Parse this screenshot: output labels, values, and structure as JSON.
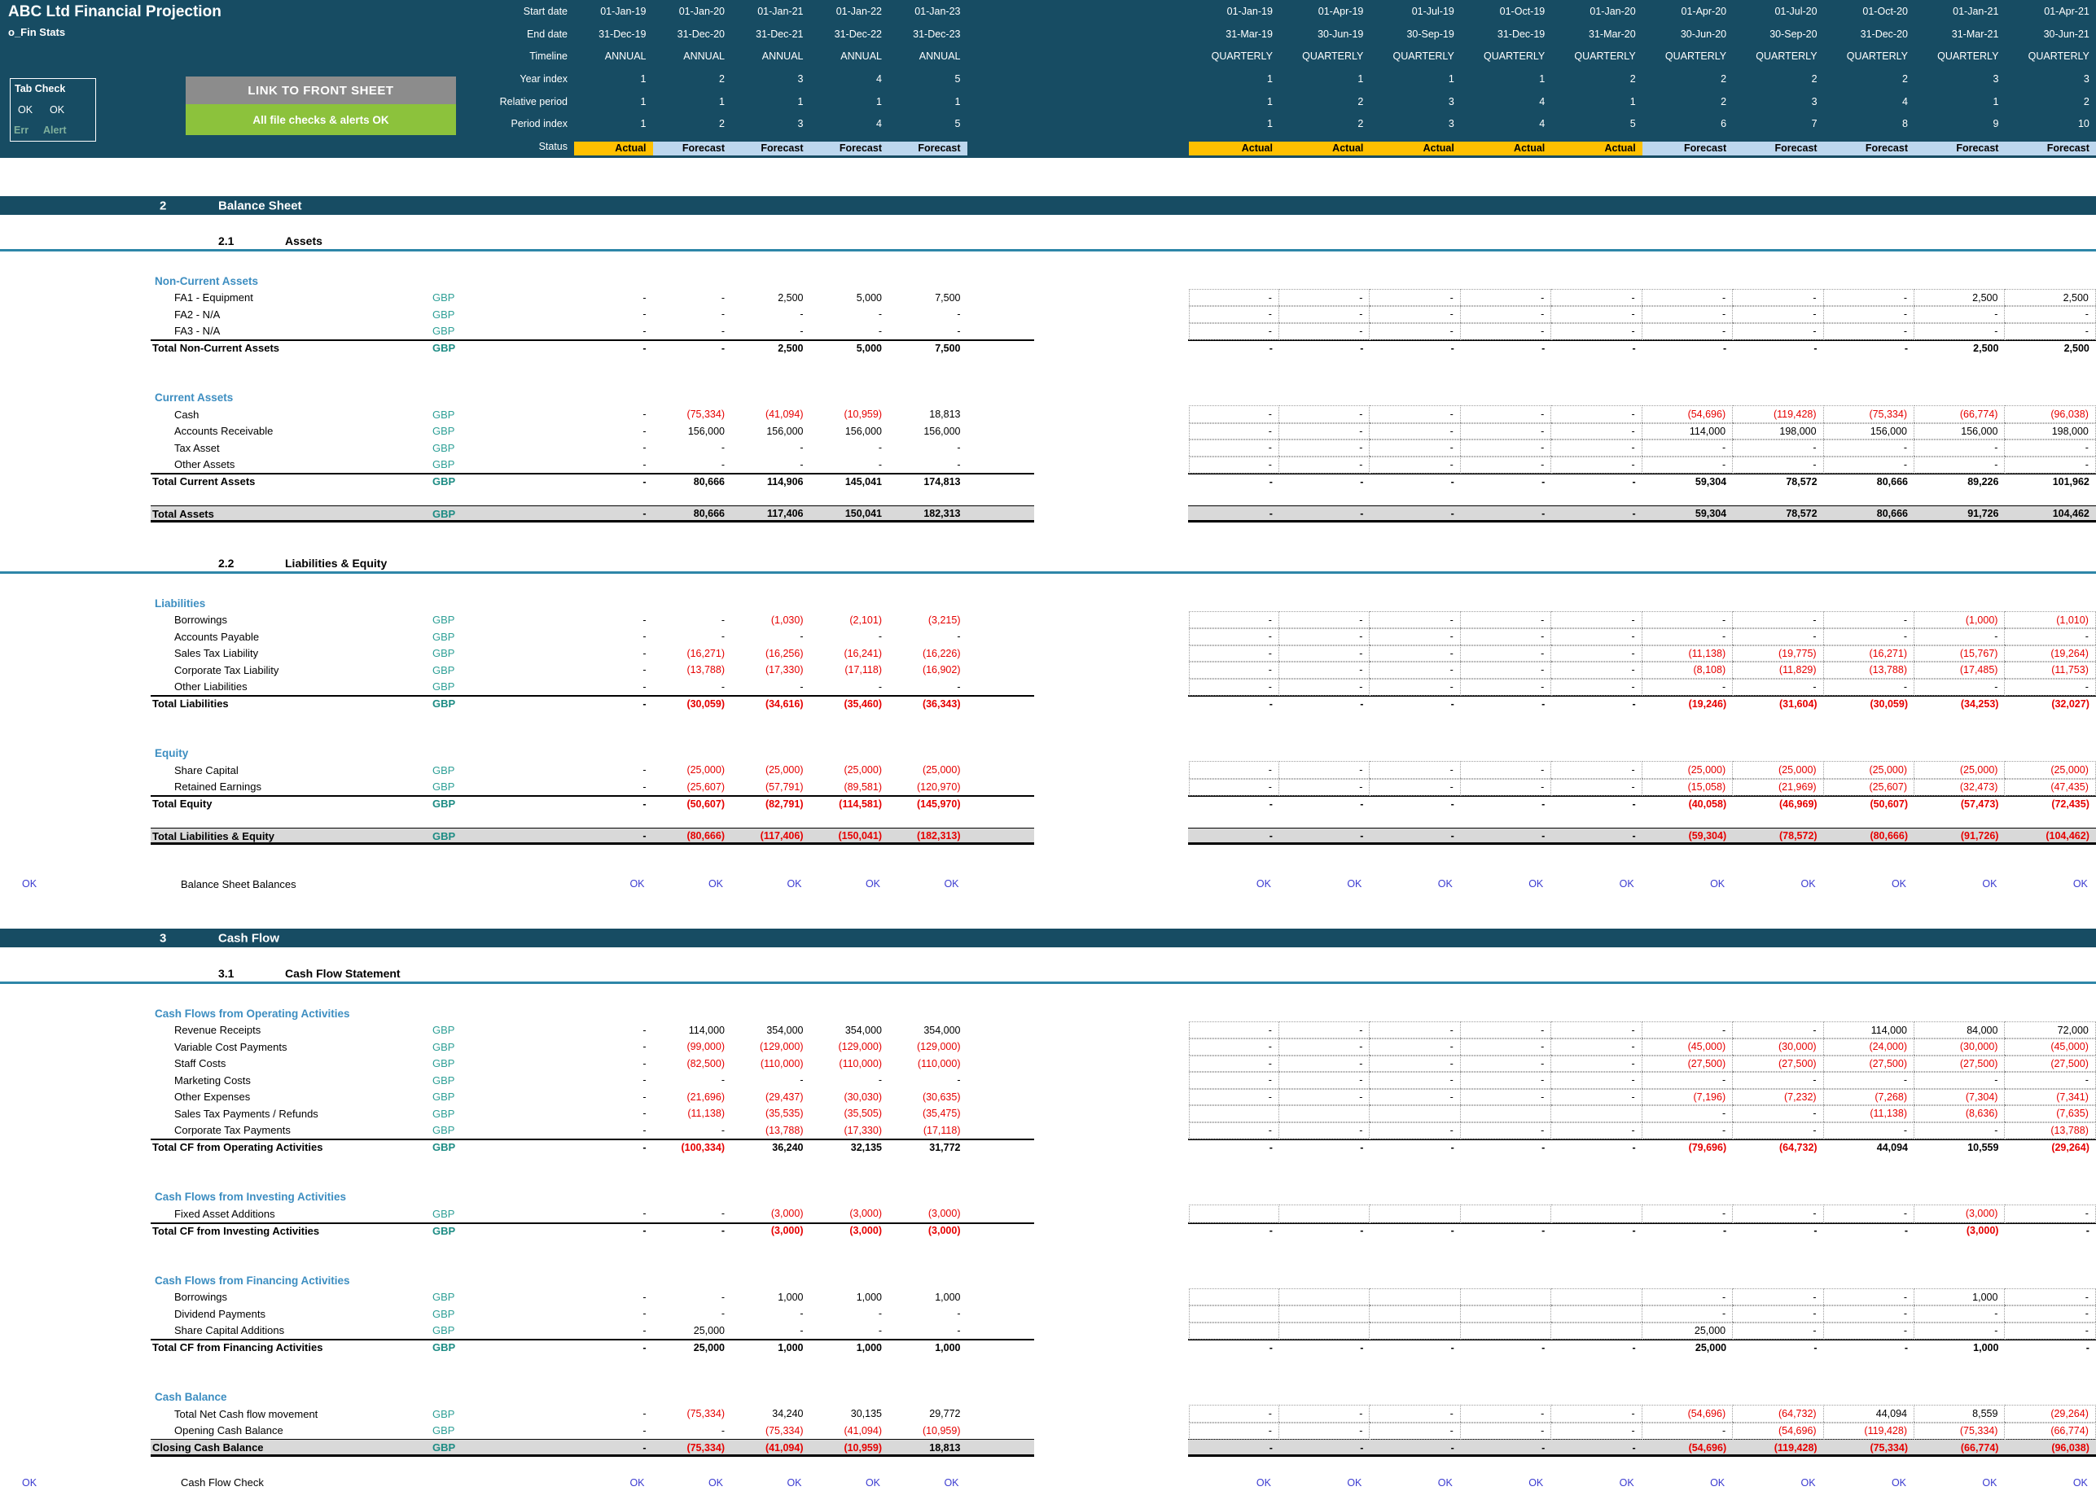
{
  "header": {
    "title": "ABC Ltd Financial Projection",
    "subtitle": "o_Fin Stats",
    "tab_check": {
      "title": "Tab Check",
      "ok_left": "OK",
      "ok_right": "OK",
      "err": "Err",
      "alert": "Alert"
    },
    "link_button": "LINK TO FRONT SHEET",
    "alert_banner": "All file checks & alerts OK",
    "meta_labels": [
      "Start date",
      "End date",
      "Timeline",
      "Year index",
      "Relative period",
      "Period index",
      "Status"
    ]
  },
  "colors": {
    "topbar": "#174C63",
    "actual": "#FFC000",
    "forecast": "#BDD7EE",
    "negative": "#E60000",
    "check_ok": "#3A3AD0",
    "group_heading": "#3D8EC1",
    "gbp": "#2FA097",
    "total_band": "#D9D9D9",
    "link_button": "#8C8C8C",
    "alert_banner": "#8CC23C",
    "err_alert": "#7FAF9C",
    "sub_underline": "#2E86A8"
  },
  "columns": {
    "annual": [
      {
        "start": "01-Jan-19",
        "end": "31-Dec-19",
        "timeline": "ANNUAL",
        "year": "1",
        "rel": "1",
        "period": "1",
        "status": "Actual"
      },
      {
        "start": "01-Jan-20",
        "end": "31-Dec-20",
        "timeline": "ANNUAL",
        "year": "2",
        "rel": "1",
        "period": "2",
        "status": "Forecast"
      },
      {
        "start": "01-Jan-21",
        "end": "31-Dec-21",
        "timeline": "ANNUAL",
        "year": "3",
        "rel": "1",
        "period": "3",
        "status": "Forecast"
      },
      {
        "start": "01-Jan-22",
        "end": "31-Dec-22",
        "timeline": "ANNUAL",
        "year": "4",
        "rel": "1",
        "period": "4",
        "status": "Forecast"
      },
      {
        "start": "01-Jan-23",
        "end": "31-Dec-23",
        "timeline": "ANNUAL",
        "year": "5",
        "rel": "1",
        "period": "5",
        "status": "Forecast"
      }
    ],
    "quarterly": [
      {
        "start": "01-Jan-19",
        "end": "31-Mar-19",
        "timeline": "QUARTERLY",
        "year": "1",
        "rel": "1",
        "period": "1",
        "status": "Actual"
      },
      {
        "start": "01-Apr-19",
        "end": "30-Jun-19",
        "timeline": "QUARTERLY",
        "year": "1",
        "rel": "2",
        "period": "2",
        "status": "Actual"
      },
      {
        "start": "01-Jul-19",
        "end": "30-Sep-19",
        "timeline": "QUARTERLY",
        "year": "1",
        "rel": "3",
        "period": "3",
        "status": "Actual"
      },
      {
        "start": "01-Oct-19",
        "end": "31-Dec-19",
        "timeline": "QUARTERLY",
        "year": "1",
        "rel": "4",
        "period": "4",
        "status": "Actual"
      },
      {
        "start": "01-Jan-20",
        "end": "31-Mar-20",
        "timeline": "QUARTERLY",
        "year": "2",
        "rel": "1",
        "period": "5",
        "status": "Actual"
      },
      {
        "start": "01-Apr-20",
        "end": "30-Jun-20",
        "timeline": "QUARTERLY",
        "year": "2",
        "rel": "2",
        "period": "6",
        "status": "Forecast"
      },
      {
        "start": "01-Jul-20",
        "end": "30-Sep-20",
        "timeline": "QUARTERLY",
        "year": "2",
        "rel": "3",
        "period": "7",
        "status": "Forecast"
      },
      {
        "start": "01-Oct-20",
        "end": "31-Dec-20",
        "timeline": "QUARTERLY",
        "year": "2",
        "rel": "4",
        "period": "8",
        "status": "Forecast"
      },
      {
        "start": "01-Jan-21",
        "end": "31-Mar-21",
        "timeline": "QUARTERLY",
        "year": "3",
        "rel": "1",
        "period": "9",
        "status": "Forecast"
      },
      {
        "start": "01-Apr-21",
        "end": "30-Jun-21",
        "timeline": "QUARTERLY",
        "year": "3",
        "rel": "2",
        "period": "10",
        "status": "Forecast"
      }
    ]
  },
  "rows": [
    {
      "t": "sp",
      "h": 47
    },
    {
      "t": "sec",
      "num": "2",
      "title": "Balance Sheet"
    },
    {
      "t": "sp",
      "h": 24
    },
    {
      "t": "sub",
      "num": "2.1",
      "title": "Assets"
    },
    {
      "t": "sp",
      "h": 26
    },
    {
      "t": "grp",
      "title": "Non-Current Assets"
    },
    {
      "t": "row",
      "label": "FA1 - Equipment",
      "gbp": "GBP",
      "a": [
        "-",
        "-",
        "2,500",
        "5,000",
        "7,500"
      ],
      "q": [
        "-",
        "-",
        "-",
        "-",
        "-",
        "-",
        "-",
        "-",
        "2,500",
        "2,500"
      ]
    },
    {
      "t": "row",
      "label": "FA2 - N/A",
      "gbp": "GBP",
      "a": [
        "-",
        "-",
        "-",
        "-",
        "-"
      ],
      "q": [
        "-",
        "-",
        "-",
        "-",
        "-",
        "-",
        "-",
        "-",
        "-",
        "-"
      ]
    },
    {
      "t": "row",
      "label": "FA3 - N/A",
      "gbp": "GBP",
      "a": [
        "-",
        "-",
        "-",
        "-",
        "-"
      ],
      "q": [
        "-",
        "-",
        "-",
        "-",
        "-",
        "-",
        "-",
        "-",
        "-",
        "-"
      ]
    },
    {
      "t": "tot",
      "label": "Total Non-Current Assets",
      "gbp": "GBP",
      "a": [
        "-",
        "-",
        "2,500",
        "5,000",
        "7,500"
      ],
      "q": [
        "-",
        "-",
        "-",
        "-",
        "-",
        "-",
        "-",
        "-",
        "2,500",
        "2,500"
      ]
    },
    {
      "t": "sp",
      "h": 40
    },
    {
      "t": "grp",
      "title": "Current Assets"
    },
    {
      "t": "row",
      "label": "Cash",
      "gbp": "GBP",
      "a": [
        "-",
        "(75,334)",
        "(41,094)",
        "(10,959)",
        "18,813"
      ],
      "q": [
        "-",
        "-",
        "-",
        "-",
        "-",
        "(54,696)",
        "(119,428)",
        "(75,334)",
        "(66,774)",
        "(96,038)"
      ]
    },
    {
      "t": "row",
      "label": "Accounts Receivable",
      "gbp": "GBP",
      "a": [
        "-",
        "156,000",
        "156,000",
        "156,000",
        "156,000"
      ],
      "q": [
        "-",
        "-",
        "-",
        "-",
        "-",
        "114,000",
        "198,000",
        "156,000",
        "156,000",
        "198,000"
      ]
    },
    {
      "t": "row",
      "label": "Tax Asset",
      "gbp": "GBP",
      "a": [
        "-",
        "-",
        "-",
        "-",
        "-"
      ],
      "q": [
        "-",
        "-",
        "-",
        "-",
        "-",
        "-",
        "-",
        "-",
        "-",
        "-"
      ]
    },
    {
      "t": "row",
      "label": "Other Assets",
      "gbp": "GBP",
      "a": [
        "-",
        "-",
        "-",
        "-",
        "-"
      ],
      "q": [
        "-",
        "-",
        "-",
        "-",
        "-",
        "-",
        "-",
        "-",
        "-",
        "-"
      ]
    },
    {
      "t": "tot",
      "label": "Total Current Assets",
      "gbp": "GBP",
      "a": [
        "-",
        "80,666",
        "114,906",
        "145,041",
        "174,813"
      ],
      "q": [
        "-",
        "-",
        "-",
        "-",
        "-",
        "59,304",
        "78,572",
        "80,666",
        "89,226",
        "101,962"
      ]
    },
    {
      "t": "sp",
      "h": 18
    },
    {
      "t": "gt",
      "label": "Total Assets",
      "gbp": "GBP",
      "a": [
        "-",
        "80,666",
        "117,406",
        "150,041",
        "182,313"
      ],
      "q": [
        "-",
        "-",
        "-",
        "-",
        "-",
        "59,304",
        "78,572",
        "80,666",
        "91,726",
        "104,462"
      ]
    },
    {
      "t": "sp",
      "h": 42
    },
    {
      "t": "sub",
      "num": "2.2",
      "title": "Liabilities & Equity"
    },
    {
      "t": "sp",
      "h": 26
    },
    {
      "t": "grp",
      "title": "Liabilities"
    },
    {
      "t": "row",
      "label": "Borrowings",
      "gbp": "GBP",
      "a": [
        "-",
        "-",
        "(1,030)",
        "(2,101)",
        "(3,215)"
      ],
      "q": [
        "-",
        "-",
        "-",
        "-",
        "-",
        "-",
        "-",
        "-",
        "(1,000)",
        "(1,010)"
      ]
    },
    {
      "t": "row",
      "label": "Accounts Payable",
      "gbp": "GBP",
      "a": [
        "-",
        "-",
        "-",
        "-",
        "-"
      ],
      "q": [
        "-",
        "-",
        "-",
        "-",
        "-",
        "-",
        "-",
        "-",
        "-",
        "-"
      ]
    },
    {
      "t": "row",
      "label": "Sales Tax Liability",
      "gbp": "GBP",
      "a": [
        "-",
        "(16,271)",
        "(16,256)",
        "(16,241)",
        "(16,226)"
      ],
      "q": [
        "-",
        "-",
        "-",
        "-",
        "-",
        "(11,138)",
        "(19,775)",
        "(16,271)",
        "(15,767)",
        "(19,264)"
      ]
    },
    {
      "t": "row",
      "label": "Corporate Tax Liability",
      "gbp": "GBP",
      "a": [
        "-",
        "(13,788)",
        "(17,330)",
        "(17,118)",
        "(16,902)"
      ],
      "q": [
        "-",
        "-",
        "-",
        "-",
        "-",
        "(8,108)",
        "(11,829)",
        "(13,788)",
        "(17,485)",
        "(11,753)"
      ]
    },
    {
      "t": "row",
      "label": "Other Liabilities",
      "gbp": "GBP",
      "a": [
        "-",
        "-",
        "-",
        "-",
        "-"
      ],
      "q": [
        "-",
        "-",
        "-",
        "-",
        "-",
        "-",
        "-",
        "-",
        "-",
        "-"
      ]
    },
    {
      "t": "tot",
      "label": "Total Liabilities",
      "gbp": "GBP",
      "a": [
        "-",
        "(30,059)",
        "(34,616)",
        "(35,460)",
        "(36,343)"
      ],
      "q": [
        "-",
        "-",
        "-",
        "-",
        "-",
        "(19,246)",
        "(31,604)",
        "(30,059)",
        "(34,253)",
        "(32,027)"
      ]
    },
    {
      "t": "sp",
      "h": 40
    },
    {
      "t": "grp",
      "title": "Equity"
    },
    {
      "t": "row",
      "label": "Share Capital",
      "gbp": "GBP",
      "a": [
        "-",
        "(25,000)",
        "(25,000)",
        "(25,000)",
        "(25,000)"
      ],
      "q": [
        "-",
        "-",
        "-",
        "-",
        "-",
        "(25,000)",
        "(25,000)",
        "(25,000)",
        "(25,000)",
        "(25,000)"
      ]
    },
    {
      "t": "row",
      "label": "Retained Earnings",
      "gbp": "GBP",
      "a": [
        "-",
        "(25,607)",
        "(57,791)",
        "(89,581)",
        "(120,970)"
      ],
      "q": [
        "-",
        "-",
        "-",
        "-",
        "-",
        "(15,058)",
        "(21,969)",
        "(25,607)",
        "(32,473)",
        "(47,435)"
      ]
    },
    {
      "t": "tot",
      "label": "Total Equity",
      "gbp": "GBP",
      "a": [
        "-",
        "(50,607)",
        "(82,791)",
        "(114,581)",
        "(145,970)"
      ],
      "q": [
        "-",
        "-",
        "-",
        "-",
        "-",
        "(40,058)",
        "(46,969)",
        "(50,607)",
        "(57,473)",
        "(72,435)"
      ]
    },
    {
      "t": "sp",
      "h": 18
    },
    {
      "t": "gt",
      "label": "Total Liabilities & Equity",
      "gbp": "GBP",
      "a": [
        "-",
        "(80,666)",
        "(117,406)",
        "(150,041)",
        "(182,313)"
      ],
      "q": [
        "-",
        "-",
        "-",
        "-",
        "-",
        "(59,304)",
        "(78,572)",
        "(80,666)",
        "(91,726)",
        "(104,462)"
      ]
    },
    {
      "t": "sp",
      "h": 38
    },
    {
      "t": "chk",
      "label": "Balance Sheet Balances",
      "left": "OK",
      "a": [
        "OK",
        "OK",
        "OK",
        "OK",
        "OK"
      ],
      "q": [
        "OK",
        "OK",
        "OK",
        "OK",
        "OK",
        "OK",
        "OK",
        "OK",
        "OK",
        "OK"
      ]
    },
    {
      "t": "sp",
      "h": 45
    },
    {
      "t": "sec",
      "num": "3",
      "title": "Cash Flow"
    },
    {
      "t": "sp",
      "h": 24
    },
    {
      "t": "sub",
      "num": "3.1",
      "title": "Cash Flow Statement"
    },
    {
      "t": "sp",
      "h": 26
    },
    {
      "t": "grp",
      "title": "Cash Flows from Operating Activities"
    },
    {
      "t": "row",
      "label": "Revenue Receipts",
      "gbp": "GBP",
      "a": [
        "-",
        "114,000",
        "354,000",
        "354,000",
        "354,000"
      ],
      "q": [
        "-",
        "-",
        "-",
        "-",
        "-",
        "-",
        "-",
        "114,000",
        "84,000",
        "72,000"
      ]
    },
    {
      "t": "row",
      "label": "Variable Cost Payments",
      "gbp": "GBP",
      "a": [
        "-",
        "(99,000)",
        "(129,000)",
        "(129,000)",
        "(129,000)"
      ],
      "q": [
        "-",
        "-",
        "-",
        "-",
        "-",
        "(45,000)",
        "(30,000)",
        "(24,000)",
        "(30,000)",
        "(45,000)"
      ]
    },
    {
      "t": "row",
      "label": "Staff Costs",
      "gbp": "GBP",
      "a": [
        "-",
        "(82,500)",
        "(110,000)",
        "(110,000)",
        "(110,000)"
      ],
      "q": [
        "-",
        "-",
        "-",
        "-",
        "-",
        "(27,500)",
        "(27,500)",
        "(27,500)",
        "(27,500)",
        "(27,500)"
      ]
    },
    {
      "t": "row",
      "label": "Marketing Costs",
      "gbp": "GBP",
      "a": [
        "-",
        "-",
        "-",
        "-",
        "-"
      ],
      "q": [
        "-",
        "-",
        "-",
        "-",
        "-",
        "-",
        "-",
        "-",
        "-",
        "-"
      ]
    },
    {
      "t": "row",
      "label": "Other Expenses",
      "gbp": "GBP",
      "a": [
        "-",
        "(21,696)",
        "(29,437)",
        "(30,030)",
        "(30,635)"
      ],
      "q": [
        "-",
        "-",
        "-",
        "-",
        "-",
        "(7,196)",
        "(7,232)",
        "(7,268)",
        "(7,304)",
        "(7,341)"
      ]
    },
    {
      "t": "row",
      "label": "Sales Tax Payments / Refunds",
      "gbp": "GBP",
      "a": [
        "-",
        "(11,138)",
        "(35,535)",
        "(35,505)",
        "(35,475)"
      ],
      "q": [
        "",
        "",
        "",
        "",
        "",
        "-",
        "-",
        "(11,138)",
        "(8,636)",
        "(7,635)"
      ]
    },
    {
      "t": "row",
      "label": "Corporate Tax Payments",
      "gbp": "GBP",
      "a": [
        "-",
        "-",
        "(13,788)",
        "(17,330)",
        "(17,118)"
      ],
      "q": [
        "-",
        "-",
        "-",
        "-",
        "-",
        "-",
        "-",
        "-",
        "-",
        "(13,788)"
      ]
    },
    {
      "t": "tot",
      "label": "Total CF from Operating Activities",
      "gbp": "GBP",
      "a": [
        "-",
        "(100,334)",
        "36,240",
        "32,135",
        "31,772"
      ],
      "q": [
        "-",
        "-",
        "-",
        "-",
        "-",
        "(79,696)",
        "(64,732)",
        "44,094",
        "10,559",
        "(29,264)"
      ]
    },
    {
      "t": "sp",
      "h": 40
    },
    {
      "t": "grp",
      "title": "Cash Flows from Investing Activities"
    },
    {
      "t": "row",
      "label": "Fixed Asset Additions",
      "gbp": "GBP",
      "a": [
        "-",
        "-",
        "(3,000)",
        "(3,000)",
        "(3,000)"
      ],
      "q": [
        "",
        "",
        "",
        "",
        "",
        "-",
        "-",
        "-",
        "(3,000)",
        "-"
      ]
    },
    {
      "t": "tot",
      "label": "Total CF from Investing Activities",
      "gbp": "GBP",
      "a": [
        "-",
        "-",
        "(3,000)",
        "(3,000)",
        "(3,000)"
      ],
      "q": [
        "-",
        "-",
        "-",
        "-",
        "-",
        "-",
        "-",
        "-",
        "(3,000)",
        "-"
      ]
    },
    {
      "t": "sp",
      "h": 40
    },
    {
      "t": "grp",
      "title": "Cash Flows from Financing Activities"
    },
    {
      "t": "row",
      "label": "Borrowings",
      "gbp": "GBP",
      "a": [
        "-",
        "-",
        "1,000",
        "1,000",
        "1,000"
      ],
      "q": [
        "",
        "",
        "",
        "",
        "",
        "-",
        "-",
        "-",
        "1,000",
        "-"
      ]
    },
    {
      "t": "row",
      "label": "Dividend Payments",
      "gbp": "GBP",
      "a": [
        "-",
        "-",
        "-",
        "-",
        "-"
      ],
      "q": [
        "",
        "",
        "",
        "",
        "",
        "-",
        "-",
        "-",
        "-",
        "-"
      ]
    },
    {
      "t": "row",
      "label": "Share Capital Additions",
      "gbp": "GBP",
      "a": [
        "-",
        "25,000",
        "-",
        "-",
        "-"
      ],
      "q": [
        "",
        "",
        "",
        "",
        "",
        "25,000",
        "-",
        "-",
        "-",
        "-"
      ]
    },
    {
      "t": "tot",
      "label": "Total CF from Financing Activities",
      "gbp": "GBP",
      "a": [
        "-",
        "25,000",
        "1,000",
        "1,000",
        "1,000"
      ],
      "q": [
        "-",
        "-",
        "-",
        "-",
        "-",
        "25,000",
        "-",
        "-",
        "1,000",
        "-"
      ]
    },
    {
      "t": "sp",
      "h": 40
    },
    {
      "t": "grp",
      "title": "Cash Balance"
    },
    {
      "t": "row",
      "label": "Total Net Cash flow movement",
      "gbp": "GBP",
      "a": [
        "-",
        "(75,334)",
        "34,240",
        "30,135",
        "29,772"
      ],
      "q": [
        "-",
        "-",
        "-",
        "-",
        "-",
        "(54,696)",
        "(64,732)",
        "44,094",
        "8,559",
        "(29,264)"
      ]
    },
    {
      "t": "row",
      "label": "Opening Cash Balance",
      "gbp": "GBP",
      "a": [
        "-",
        "-",
        "(75,334)",
        "(41,094)",
        "(10,959)"
      ],
      "q": [
        "-",
        "-",
        "-",
        "-",
        "-",
        "-",
        "(54,696)",
        "(119,428)",
        "(75,334)",
        "(66,774)"
      ]
    },
    {
      "t": "gt",
      "label": "Closing Cash Balance",
      "gbp": "GBP",
      "a": [
        "-",
        "(75,334)",
        "(41,094)",
        "(10,959)",
        "18,813"
      ],
      "q": [
        "-",
        "-",
        "-",
        "-",
        "-",
        "(54,696)",
        "(119,428)",
        "(75,334)",
        "(66,774)",
        "(96,038)"
      ]
    },
    {
      "t": "sp",
      "h": 22
    },
    {
      "t": "chk",
      "label": "Cash Flow Check",
      "left": "OK",
      "a": [
        "OK",
        "OK",
        "OK",
        "OK",
        "OK"
      ],
      "q": [
        "OK",
        "OK",
        "OK",
        "OK",
        "OK",
        "OK",
        "OK",
        "OK",
        "OK",
        "OK"
      ]
    }
  ]
}
